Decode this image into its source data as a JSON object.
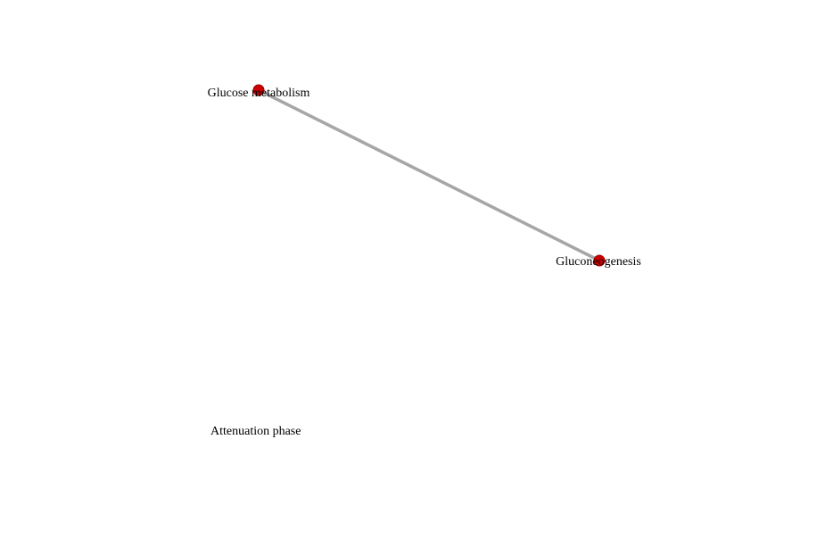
{
  "diagram": {
    "caption": "Attenuation phase",
    "colors": {
      "node_fill": "#cc0000",
      "node_stroke": "#990000",
      "edge": "#a6a6a6",
      "label": "#000000",
      "background": "#ffffff"
    },
    "nodes": [
      {
        "id": "glucose-metabolism",
        "label": "Glucose metabolism"
      },
      {
        "id": "gluconeogenesis",
        "label": "Gluconeogenesis"
      }
    ],
    "edges": [
      {
        "source": "glucose-metabolism",
        "target": "gluconeogenesis"
      }
    ]
  }
}
